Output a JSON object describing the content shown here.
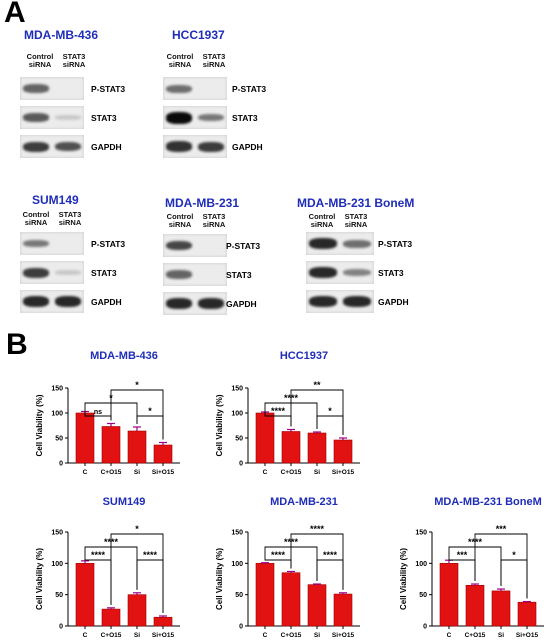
{
  "panel_a": {
    "letter": "A",
    "blots": [
      {
        "title": "MDA-MB-436",
        "lanes": [
          "Control siRNA",
          "STAT3 siRNA"
        ],
        "lane_lines": [
          [
            "Control",
            "siRNA"
          ],
          [
            "STAT3",
            "siRNA"
          ]
        ],
        "rows": [
          {
            "label": "P-STAT3",
            "intensity": [
              0.55,
              0.0
            ]
          },
          {
            "label": "STAT3",
            "intensity": [
              0.6,
              0.05
            ]
          },
          {
            "label": "GAPDH",
            "intensity": [
              0.75,
              0.65
            ]
          }
        ]
      },
      {
        "title": "HCC1937",
        "lanes": [
          "Control siRNA",
          "STAT3 siRNA"
        ],
        "lane_lines": [
          [
            "Control",
            "siRNA"
          ],
          [
            "STAT3",
            "siRNA"
          ]
        ],
        "rows": [
          {
            "label": "P-STAT3",
            "intensity": [
              0.5,
              0.0
            ]
          },
          {
            "label": "STAT3",
            "intensity": [
              1.0,
              0.45
            ]
          },
          {
            "label": "GAPDH",
            "intensity": [
              0.8,
              0.75
            ]
          }
        ]
      },
      {
        "title": "SUM149",
        "lanes": [
          "Control siRNA",
          "STAT3 siRNA"
        ],
        "lane_lines": [
          [
            "Control",
            "siRNA"
          ],
          [
            "STAT3",
            "siRNA"
          ]
        ],
        "rows": [
          {
            "label": "P-STAT3",
            "intensity": [
              0.45,
              0.0
            ]
          },
          {
            "label": "STAT3",
            "intensity": [
              0.75,
              0.05
            ]
          },
          {
            "label": "GAPDH",
            "intensity": [
              0.85,
              0.85
            ]
          }
        ]
      },
      {
        "title": "MDA-MB-231",
        "lanes": [
          "Control siRNA",
          "STAT3 siRNA"
        ],
        "lane_lines": [
          [
            "Control",
            "siRNA"
          ],
          [
            "STAT3",
            "siRNA"
          ]
        ],
        "rows": [
          {
            "label": "P-STAT3",
            "intensity": [
              0.7,
              0.0
            ]
          },
          {
            "label": "STAT3",
            "intensity": [
              0.55,
              0.0
            ]
          },
          {
            "label": "GAPDH",
            "intensity": [
              0.85,
              0.85
            ]
          }
        ]
      },
      {
        "title": "MDA-MB-231 BoneM",
        "lanes": [
          "Control siRNA",
          "STAT3 siRNA"
        ],
        "lane_lines": [
          [
            "Control",
            "siRNA"
          ],
          [
            "STAT3",
            "siRNA"
          ]
        ],
        "rows": [
          {
            "label": "P-STAT3",
            "intensity": [
              0.85,
              0.5
            ]
          },
          {
            "label": "STAT3",
            "intensity": [
              0.85,
              0.4
            ]
          },
          {
            "label": "GAPDH",
            "intensity": [
              0.85,
              0.85
            ]
          }
        ]
      }
    ]
  },
  "panel_b": {
    "letter": "B"
  },
  "chart_data": [
    {
      "type": "bar",
      "title": "MDA-MB-436",
      "ylabel": "Cell Viability (%)",
      "categories": [
        "C",
        "C+O15",
        "Si",
        "Si+O15"
      ],
      "values": [
        100,
        73,
        64,
        36
      ],
      "errors": [
        3,
        6,
        8,
        5
      ],
      "ylim": [
        0,
        150
      ],
      "yticks": [
        0,
        50,
        100,
        150
      ],
      "comparisons": [
        {
          "from": 0,
          "to": 1,
          "label": "ns"
        },
        {
          "from": 0,
          "to": 2,
          "label": "*"
        },
        {
          "from": 1,
          "to": 3,
          "label": "*"
        },
        {
          "from": 2,
          "to": 3,
          "label": "*"
        }
      ],
      "bar_color": "#e31212"
    },
    {
      "type": "bar",
      "title": "HCC1937",
      "ylabel": "Cell Viability (%)",
      "categories": [
        "C",
        "C+O15",
        "Si",
        "Si+O15"
      ],
      "values": [
        100,
        63,
        60,
        46
      ],
      "errors": [
        2,
        4,
        2,
        4
      ],
      "ylim": [
        0,
        150
      ],
      "yticks": [
        0,
        50,
        100,
        150
      ],
      "comparisons": [
        {
          "from": 0,
          "to": 1,
          "label": "****"
        },
        {
          "from": 0,
          "to": 2,
          "label": "****"
        },
        {
          "from": 1,
          "to": 3,
          "label": "**"
        },
        {
          "from": 2,
          "to": 3,
          "label": "*"
        }
      ],
      "bar_color": "#e31212"
    },
    {
      "type": "bar",
      "title": "SUM149",
      "ylabel": "Cell Viability (%)",
      "categories": [
        "C",
        "C+O15",
        "Si",
        "Si+O15"
      ],
      "values": [
        100,
        27,
        50,
        14
      ],
      "errors": [
        4,
        2,
        3,
        2
      ],
      "ylim": [
        0,
        150
      ],
      "yticks": [
        0,
        50,
        100,
        150
      ],
      "comparisons": [
        {
          "from": 0,
          "to": 1,
          "label": "****"
        },
        {
          "from": 0,
          "to": 2,
          "label": "****"
        },
        {
          "from": 1,
          "to": 3,
          "label": "*"
        },
        {
          "from": 2,
          "to": 3,
          "label": "****"
        }
      ],
      "bar_color": "#e31212"
    },
    {
      "type": "bar",
      "title": "MDA-MB-231",
      "ylabel": "Cell Viability (%)",
      "categories": [
        "C",
        "C+O15",
        "Si",
        "Si+O15"
      ],
      "values": [
        100,
        85,
        66,
        51
      ],
      "errors": [
        1,
        2,
        1,
        2
      ],
      "ylim": [
        0,
        150
      ],
      "yticks": [
        0,
        50,
        100,
        150
      ],
      "comparisons": [
        {
          "from": 0,
          "to": 1,
          "label": "****"
        },
        {
          "from": 0,
          "to": 2,
          "label": "****"
        },
        {
          "from": 1,
          "to": 3,
          "label": "****"
        },
        {
          "from": 2,
          "to": 3,
          "label": "****"
        }
      ],
      "bar_color": "#e31212"
    },
    {
      "type": "bar",
      "title": "MDA-MB-231 BoneM",
      "ylabel": "Cell Viability (%)",
      "categories": [
        "C",
        "C+O15",
        "Si",
        "Si+O15"
      ],
      "values": [
        100,
        65,
        56,
        38
      ],
      "errors": [
        5,
        2,
        3,
        1
      ],
      "ylim": [
        0,
        150
      ],
      "yticks": [
        0,
        50,
        100,
        150
      ],
      "comparisons": [
        {
          "from": 0,
          "to": 1,
          "label": "***"
        },
        {
          "from": 0,
          "to": 2,
          "label": "****"
        },
        {
          "from": 1,
          "to": 3,
          "label": "***"
        },
        {
          "from": 2,
          "to": 3,
          "label": "*"
        }
      ],
      "bar_color": "#e31212"
    }
  ]
}
